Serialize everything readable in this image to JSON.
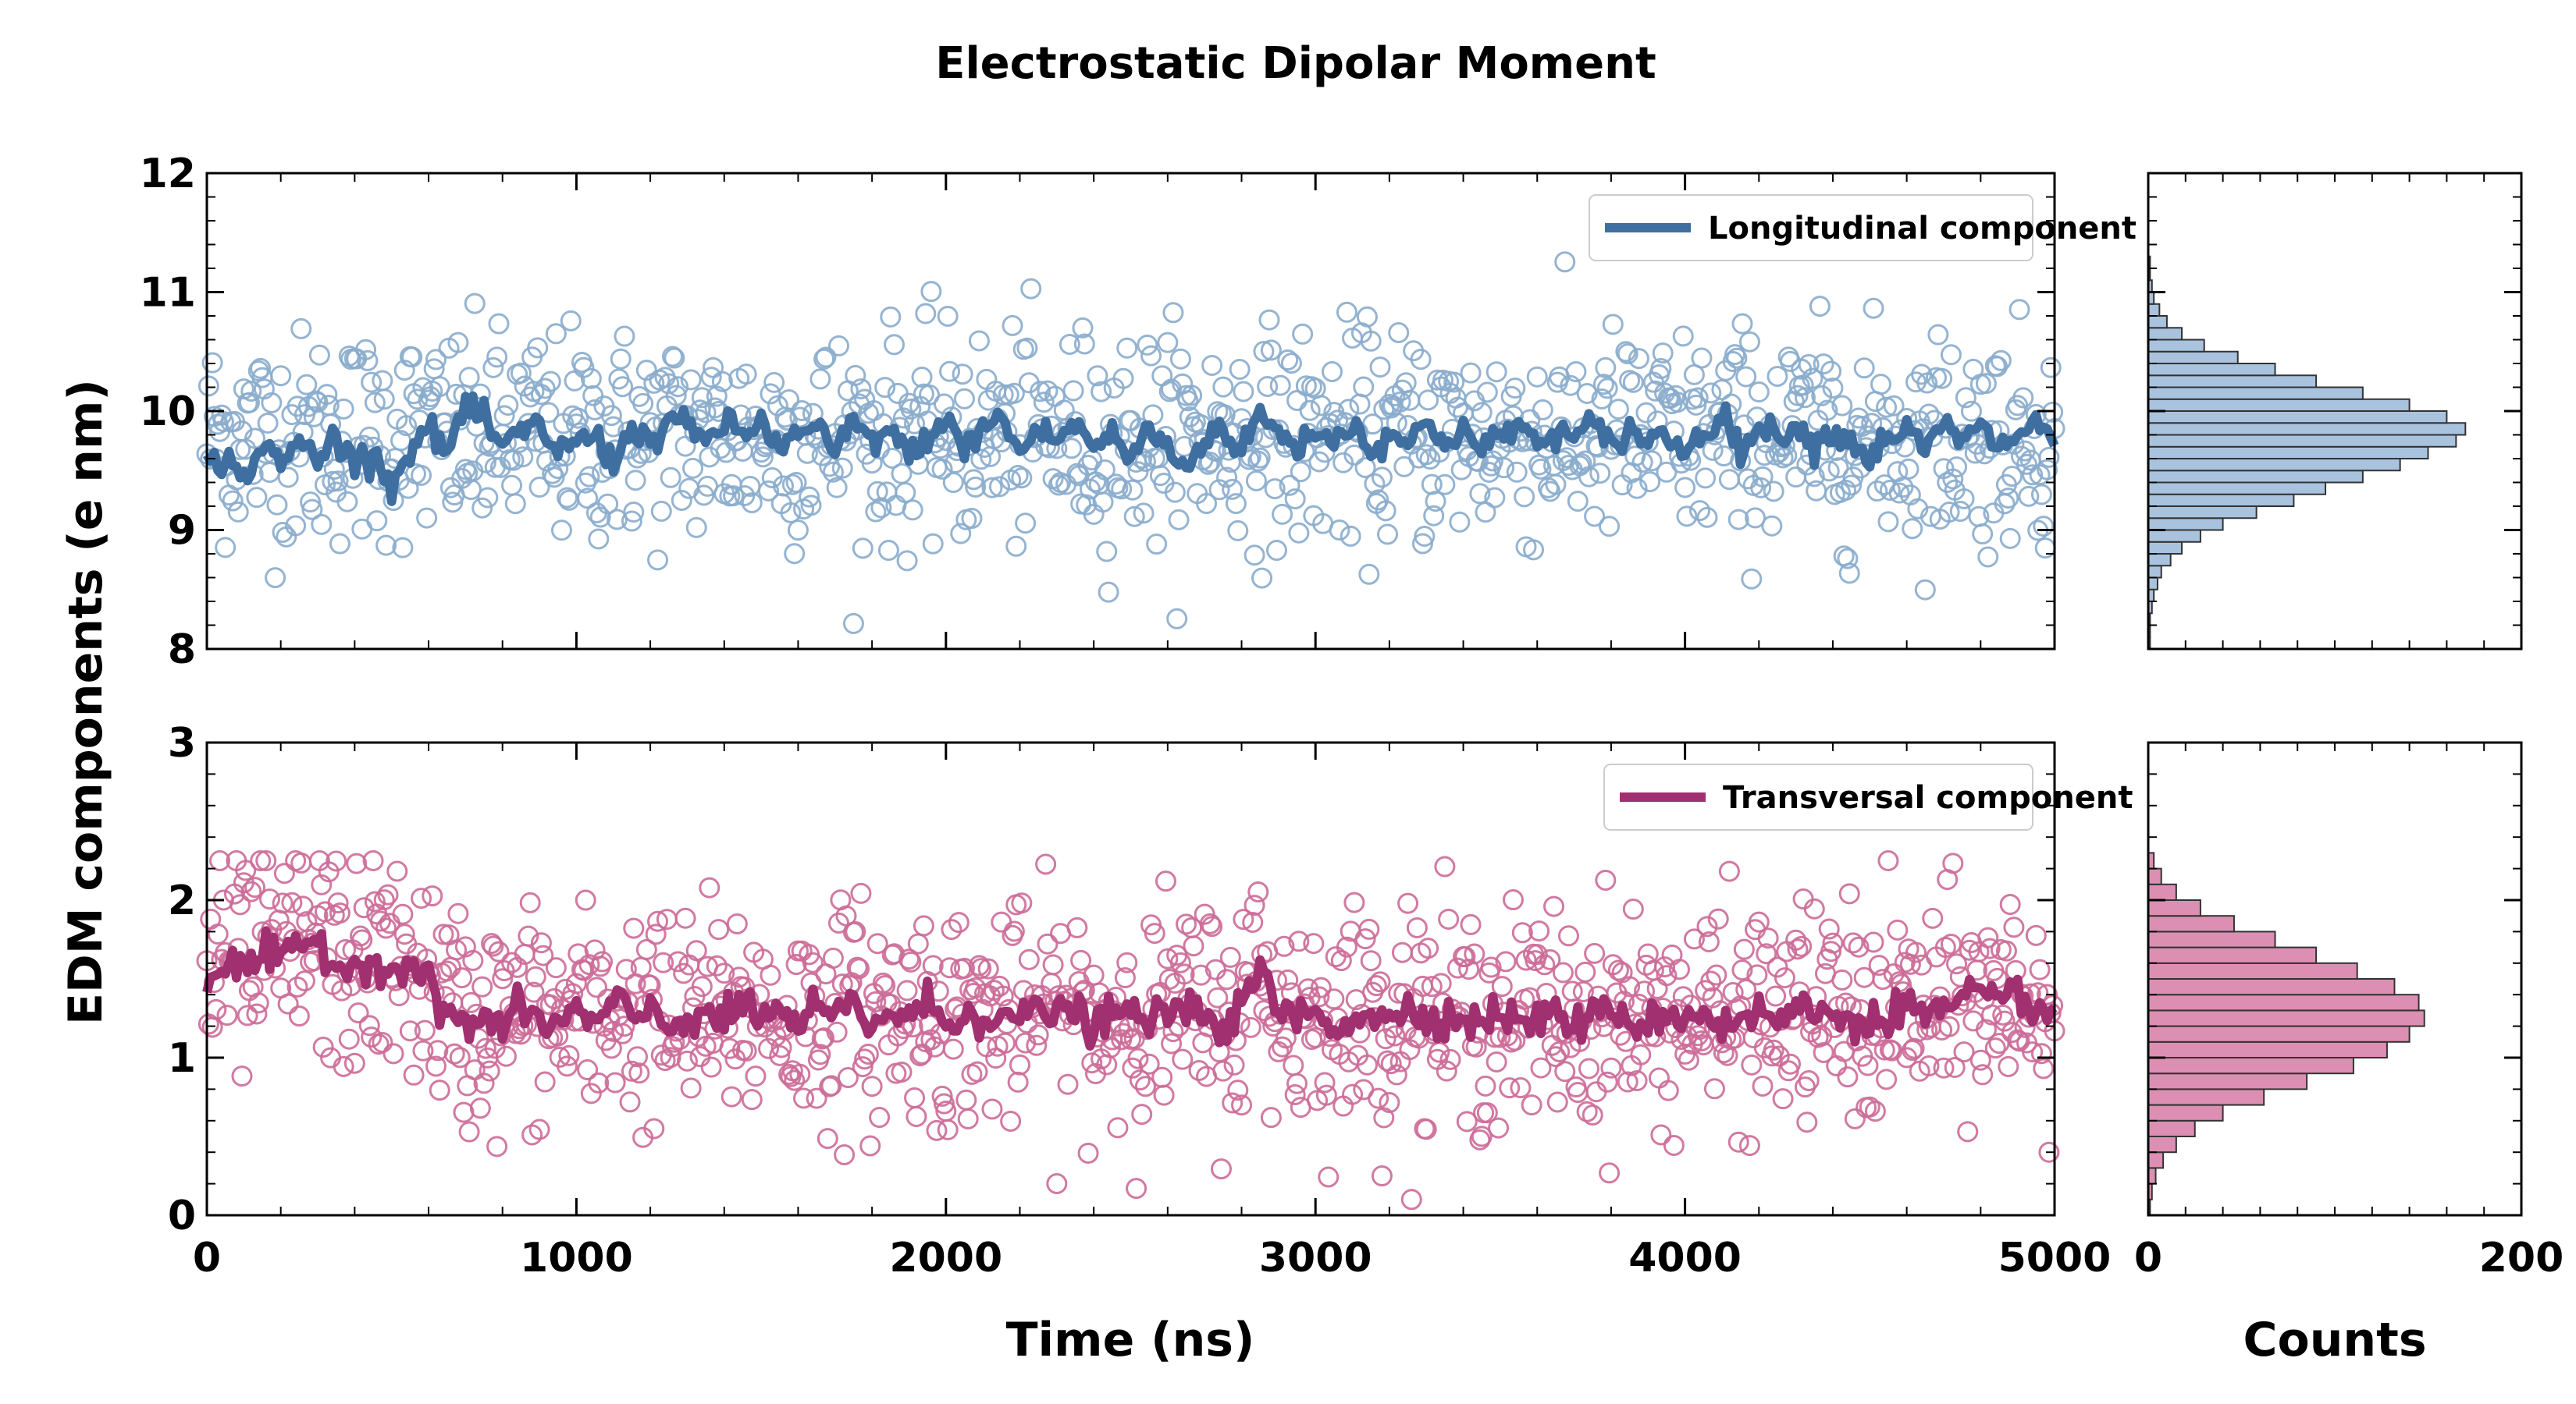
{
  "chart_data": {
    "title": "Electrostatic Dipolar Moment",
    "shared_ylabel": "EDM components (e nm)",
    "shared_xlabel": "Time (ns)",
    "hist_xlabel": "Counts",
    "colors": {
      "longitudinal": "#3f6fa0",
      "longitudinal_light": "#8aaccc",
      "longitudinal_hist": "#a9c3de",
      "transversal": "#a03070",
      "transversal_light": "#cc6b98",
      "transversal_hist": "#dc8fb3"
    },
    "panels": [
      {
        "id": "longitudinal",
        "type": "scatter+line",
        "legend": "Longitudinal component",
        "legend_position": "top-right",
        "xlim": [
          0,
          5000
        ],
        "ylim": [
          8,
          12
        ],
        "x_ticks": [
          0,
          1000,
          2000,
          3000,
          4000,
          5000
        ],
        "y_ticks": [
          8,
          9,
          10,
          11,
          12
        ],
        "point_spacing_ns": 5,
        "points_mean": 9.78,
        "points_sd": 0.45,
        "points_range": [
          8.0,
          11.3
        ],
        "smoothed_line": [
          [
            0,
            9.55
          ],
          [
            50,
            9.6
          ],
          [
            100,
            9.45
          ],
          [
            150,
            9.7
          ],
          [
            200,
            9.55
          ],
          [
            250,
            9.75
          ],
          [
            300,
            9.6
          ],
          [
            350,
            9.8
          ],
          [
            400,
            9.55
          ],
          [
            450,
            9.7
          ],
          [
            500,
            9.35
          ],
          [
            550,
            9.7
          ],
          [
            600,
            9.85
          ],
          [
            650,
            9.65
          ],
          [
            700,
            10.05
          ],
          [
            750,
            9.9
          ],
          [
            800,
            9.7
          ],
          [
            850,
            9.8
          ],
          [
            900,
            9.9
          ],
          [
            950,
            9.65
          ],
          [
            1000,
            9.75
          ],
          [
            1050,
            9.8
          ],
          [
            1100,
            9.55
          ],
          [
            1150,
            9.9
          ],
          [
            1200,
            9.7
          ],
          [
            1250,
            9.95
          ],
          [
            1300,
            9.85
          ],
          [
            1350,
            9.75
          ],
          [
            1400,
            9.9
          ],
          [
            1450,
            9.8
          ],
          [
            1500,
            9.9
          ],
          [
            1550,
            9.7
          ],
          [
            1600,
            9.8
          ],
          [
            1650,
            9.85
          ],
          [
            1700,
            9.65
          ],
          [
            1750,
            9.9
          ],
          [
            1800,
            9.75
          ],
          [
            1850,
            9.85
          ],
          [
            1900,
            9.6
          ],
          [
            1950,
            9.8
          ],
          [
            2000,
            9.9
          ],
          [
            2050,
            9.7
          ],
          [
            2100,
            9.85
          ],
          [
            2150,
            9.95
          ],
          [
            2200,
            9.65
          ],
          [
            2250,
            9.85
          ],
          [
            2300,
            9.75
          ],
          [
            2350,
            9.9
          ],
          [
            2400,
            9.7
          ],
          [
            2450,
            9.8
          ],
          [
            2500,
            9.6
          ],
          [
            2550,
            9.85
          ],
          [
            2600,
            9.7
          ],
          [
            2650,
            9.5
          ],
          [
            2700,
            9.8
          ],
          [
            2750,
            9.85
          ],
          [
            2800,
            9.65
          ],
          [
            2850,
            10.0
          ],
          [
            2900,
            9.8
          ],
          [
            2950,
            9.7
          ],
          [
            3000,
            9.85
          ],
          [
            3050,
            9.75
          ],
          [
            3100,
            9.9
          ],
          [
            3150,
            9.65
          ],
          [
            3200,
            9.85
          ],
          [
            3250,
            9.7
          ],
          [
            3300,
            9.9
          ],
          [
            3350,
            9.75
          ],
          [
            3400,
            9.85
          ],
          [
            3450,
            9.65
          ],
          [
            3500,
            9.8
          ],
          [
            3550,
            9.9
          ],
          [
            3600,
            9.7
          ],
          [
            3650,
            9.85
          ],
          [
            3700,
            9.75
          ],
          [
            3750,
            9.9
          ],
          [
            3800,
            9.7
          ],
          [
            3850,
            9.85
          ],
          [
            3900,
            9.75
          ],
          [
            3950,
            9.8
          ],
          [
            4000,
            9.65
          ],
          [
            4050,
            9.85
          ],
          [
            4100,
            9.95
          ],
          [
            4150,
            9.7
          ],
          [
            4200,
            9.85
          ],
          [
            4250,
            9.8
          ],
          [
            4300,
            9.9
          ],
          [
            4350,
            9.7
          ],
          [
            4400,
            9.85
          ],
          [
            4450,
            9.75
          ],
          [
            4500,
            9.6
          ],
          [
            4550,
            9.8
          ],
          [
            4600,
            9.85
          ],
          [
            4650,
            9.65
          ],
          [
            4700,
            9.9
          ],
          [
            4750,
            9.75
          ],
          [
            4800,
            9.85
          ],
          [
            4850,
            9.7
          ],
          [
            4900,
            9.8
          ],
          [
            4950,
            9.9
          ],
          [
            5000,
            9.75
          ]
        ]
      },
      {
        "id": "transversal",
        "type": "scatter+line",
        "legend": "Transversal component",
        "legend_position": "top-right",
        "xlim": [
          0,
          5000
        ],
        "ylim": [
          0,
          3
        ],
        "x_ticks": [
          0,
          1000,
          2000,
          3000,
          4000,
          5000
        ],
        "x_tick_labels": [
          "0",
          "1000",
          "2000",
          "3000",
          "4000",
          "5000"
        ],
        "y_ticks": [
          0,
          1,
          2,
          3
        ],
        "point_spacing_ns": 5,
        "points_sd": 0.35,
        "points_range": [
          0.1,
          2.25
        ],
        "smoothed_line": [
          [
            0,
            1.5
          ],
          [
            50,
            1.6
          ],
          [
            100,
            1.55
          ],
          [
            150,
            1.65
          ],
          [
            200,
            1.6
          ],
          [
            250,
            1.7
          ],
          [
            300,
            1.75
          ],
          [
            350,
            1.6
          ],
          [
            400,
            1.55
          ],
          [
            450,
            1.65
          ],
          [
            500,
            1.55
          ],
          [
            550,
            1.6
          ],
          [
            600,
            1.45
          ],
          [
            650,
            1.3
          ],
          [
            700,
            1.2
          ],
          [
            750,
            1.25
          ],
          [
            800,
            1.2
          ],
          [
            850,
            1.3
          ],
          [
            900,
            1.25
          ],
          [
            950,
            1.2
          ],
          [
            1000,
            1.3
          ],
          [
            1050,
            1.2
          ],
          [
            1100,
            1.35
          ],
          [
            1150,
            1.25
          ],
          [
            1200,
            1.3
          ],
          [
            1250,
            1.2
          ],
          [
            1300,
            1.25
          ],
          [
            1350,
            1.3
          ],
          [
            1400,
            1.2
          ],
          [
            1450,
            1.35
          ],
          [
            1500,
            1.25
          ],
          [
            1550,
            1.3
          ],
          [
            1600,
            1.2
          ],
          [
            1650,
            1.3
          ],
          [
            1700,
            1.25
          ],
          [
            1750,
            1.35
          ],
          [
            1800,
            1.2
          ],
          [
            1850,
            1.3
          ],
          [
            1900,
            1.25
          ],
          [
            1950,
            1.35
          ],
          [
            2000,
            1.2
          ],
          [
            2050,
            1.3
          ],
          [
            2100,
            1.25
          ],
          [
            2150,
            1.3
          ],
          [
            2200,
            1.2
          ],
          [
            2250,
            1.35
          ],
          [
            2300,
            1.25
          ],
          [
            2350,
            1.3
          ],
          [
            2400,
            1.2
          ],
          [
            2450,
            1.25
          ],
          [
            2500,
            1.3
          ],
          [
            2550,
            1.2
          ],
          [
            2600,
            1.35
          ],
          [
            2650,
            1.25
          ],
          [
            2700,
            1.3
          ],
          [
            2750,
            1.2
          ],
          [
            2800,
            1.3
          ],
          [
            2850,
            1.55
          ],
          [
            2900,
            1.3
          ],
          [
            2950,
            1.25
          ],
          [
            3000,
            1.3
          ],
          [
            3050,
            1.2
          ],
          [
            3100,
            1.25
          ],
          [
            3150,
            1.3
          ],
          [
            3200,
            1.2
          ],
          [
            3250,
            1.35
          ],
          [
            3300,
            1.25
          ],
          [
            3350,
            1.3
          ],
          [
            3400,
            1.2
          ],
          [
            3450,
            1.25
          ],
          [
            3500,
            1.3
          ],
          [
            3550,
            1.2
          ],
          [
            3600,
            1.25
          ],
          [
            3650,
            1.3
          ],
          [
            3700,
            1.2
          ],
          [
            3750,
            1.25
          ],
          [
            3800,
            1.3
          ],
          [
            3850,
            1.25
          ],
          [
            3900,
            1.2
          ],
          [
            3950,
            1.3
          ],
          [
            4000,
            1.25
          ],
          [
            4050,
            1.3
          ],
          [
            4100,
            1.2
          ],
          [
            4150,
            1.25
          ],
          [
            4200,
            1.3
          ],
          [
            4250,
            1.2
          ],
          [
            4300,
            1.35
          ],
          [
            4350,
            1.25
          ],
          [
            4400,
            1.3
          ],
          [
            4450,
            1.25
          ],
          [
            4500,
            1.2
          ],
          [
            4550,
            1.3
          ],
          [
            4600,
            1.35
          ],
          [
            4650,
            1.25
          ],
          [
            4700,
            1.3
          ],
          [
            4750,
            1.35
          ],
          [
            4800,
            1.4
          ],
          [
            4850,
            1.3
          ],
          [
            4900,
            1.45
          ],
          [
            4950,
            1.3
          ],
          [
            5000,
            1.25
          ]
        ]
      }
    ],
    "histograms": [
      {
        "id": "longitudinal-hist",
        "type": "bar",
        "orientation": "horizontal",
        "xlim": [
          0,
          200
        ],
        "ylim": [
          8,
          12
        ],
        "bin_width": 0.1,
        "bin_starts": [
          8.0,
          8.1,
          8.2,
          8.3,
          8.4,
          8.5,
          8.6,
          8.7,
          8.8,
          8.9,
          9.0,
          9.1,
          9.2,
          9.3,
          9.4,
          9.5,
          9.6,
          9.7,
          9.8,
          9.9,
          10.0,
          10.1,
          10.2,
          10.3,
          10.4,
          10.5,
          10.6,
          10.7,
          10.8,
          10.9,
          11.0,
          11.1,
          11.2
        ],
        "counts": [
          1,
          1,
          1,
          2,
          3,
          5,
          7,
          12,
          18,
          28,
          40,
          58,
          78,
          95,
          115,
          135,
          150,
          165,
          170,
          160,
          140,
          115,
          90,
          68,
          48,
          30,
          18,
          10,
          6,
          3,
          2,
          1,
          1
        ]
      },
      {
        "id": "transversal-hist",
        "type": "bar",
        "orientation": "horizontal",
        "xlim": [
          0,
          200
        ],
        "ylim": [
          0,
          3
        ],
        "x_ticks": [
          0,
          200
        ],
        "x_tick_labels": [
          "0",
          "200"
        ],
        "bin_width": 0.1,
        "bin_starts": [
          0.0,
          0.1,
          0.2,
          0.3,
          0.4,
          0.5,
          0.6,
          0.7,
          0.8,
          0.9,
          1.0,
          1.1,
          1.2,
          1.3,
          1.4,
          1.5,
          1.6,
          1.7,
          1.8,
          1.9,
          2.0,
          2.1,
          2.2
        ],
        "counts": [
          1,
          2,
          4,
          8,
          15,
          25,
          40,
          62,
          85,
          110,
          128,
          140,
          148,
          145,
          132,
          112,
          90,
          68,
          46,
          28,
          15,
          7,
          3
        ]
      }
    ]
  }
}
